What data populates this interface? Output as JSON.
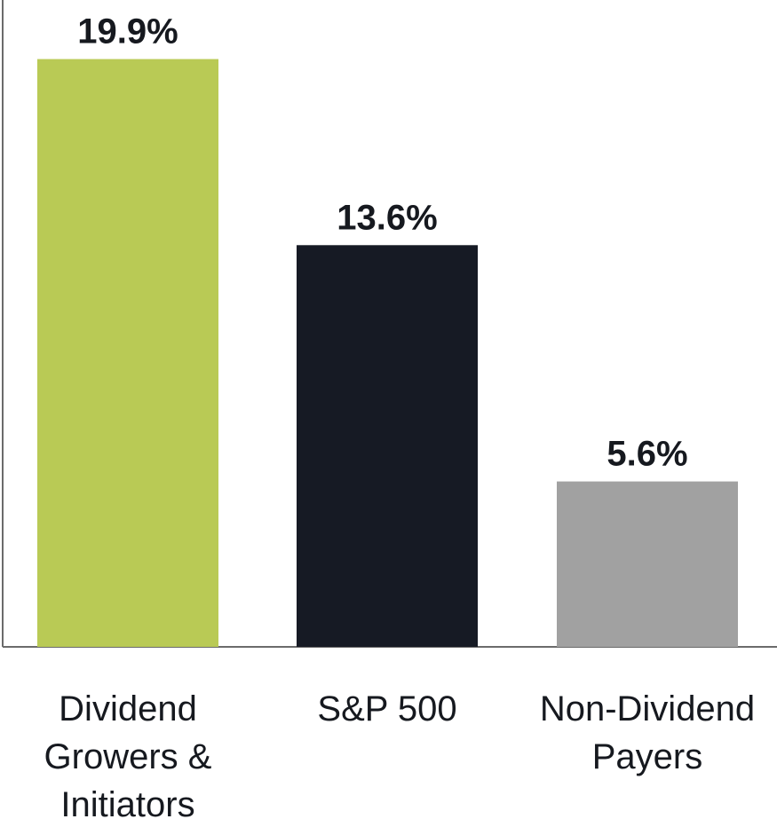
{
  "chart_data": {
    "type": "bar",
    "categories": [
      "Dividend Growers & Initiators",
      "S&P 500",
      "Non-Dividend Payers"
    ],
    "category_lines": [
      [
        "Dividend",
        "Growers &",
        "Initiators"
      ],
      [
        "S&P 500"
      ],
      [
        "Non-Dividend",
        "Payers"
      ]
    ],
    "values": [
      19.9,
      13.6,
      5.6
    ],
    "value_labels": [
      "19.9%",
      "13.6%",
      "5.6%"
    ],
    "colors": [
      "#b9ca55",
      "#161a24",
      "#a1a1a1"
    ],
    "ylim": [
      0,
      21.9
    ],
    "grid": false,
    "legend": "none"
  }
}
